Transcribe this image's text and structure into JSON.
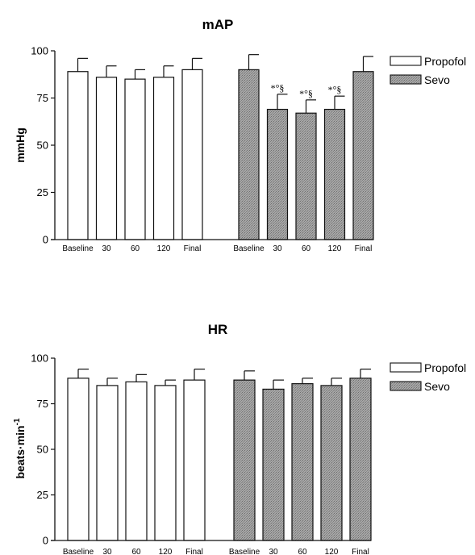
{
  "chart_data": [
    {
      "type": "bar",
      "title": "mAP",
      "ylabel": "mmHg",
      "ylim": [
        0,
        100
      ],
      "yticks": [
        0,
        25,
        50,
        75,
        100
      ],
      "groups": [
        {
          "name": "Propofol",
          "color": "#ffffff",
          "categories": [
            "Baseline",
            "30",
            "60",
            "120",
            "Final"
          ],
          "values": [
            89,
            86,
            85,
            86,
            90
          ],
          "errors": [
            7,
            6,
            5,
            6,
            6
          ],
          "annotations": [
            "",
            "",
            "",
            "",
            ""
          ]
        },
        {
          "name": "Sevo",
          "color": "#9a9a9a",
          "categories": [
            "Baseline",
            "30",
            "60",
            "120",
            "Final"
          ],
          "values": [
            90,
            69,
            67,
            69,
            89
          ],
          "errors": [
            8,
            8,
            7,
            7,
            8
          ],
          "annotations": [
            "",
            "*°§",
            "*°§",
            "*°§",
            ""
          ]
        }
      ],
      "legend": {
        "position": "top-right",
        "entries": [
          "Propofol",
          "Sevo"
        ]
      }
    },
    {
      "type": "bar",
      "title": "HR",
      "ylabel": "beats·min",
      "ylabel_sup": "-1",
      "ylim": [
        0,
        100
      ],
      "yticks": [
        0,
        25,
        50,
        75,
        100
      ],
      "groups": [
        {
          "name": "Propofol",
          "color": "#ffffff",
          "categories": [
            "Baseline",
            "30",
            "60",
            "120",
            "Final"
          ],
          "values": [
            89,
            85,
            87,
            85,
            88
          ],
          "errors": [
            5,
            4,
            4,
            3,
            6
          ],
          "annotations": [
            "",
            "",
            "",
            "",
            ""
          ]
        },
        {
          "name": "Sevo",
          "color": "#9a9a9a",
          "categories": [
            "Baseline",
            "30",
            "60",
            "120",
            "Final"
          ],
          "values": [
            88,
            83,
            86,
            85,
            89
          ],
          "errors": [
            5,
            5,
            3,
            4,
            5
          ],
          "annotations": [
            "",
            "",
            "",
            "",
            ""
          ]
        }
      ],
      "legend": {
        "position": "top-right",
        "entries": [
          "Propofol",
          "Sevo"
        ]
      }
    }
  ]
}
